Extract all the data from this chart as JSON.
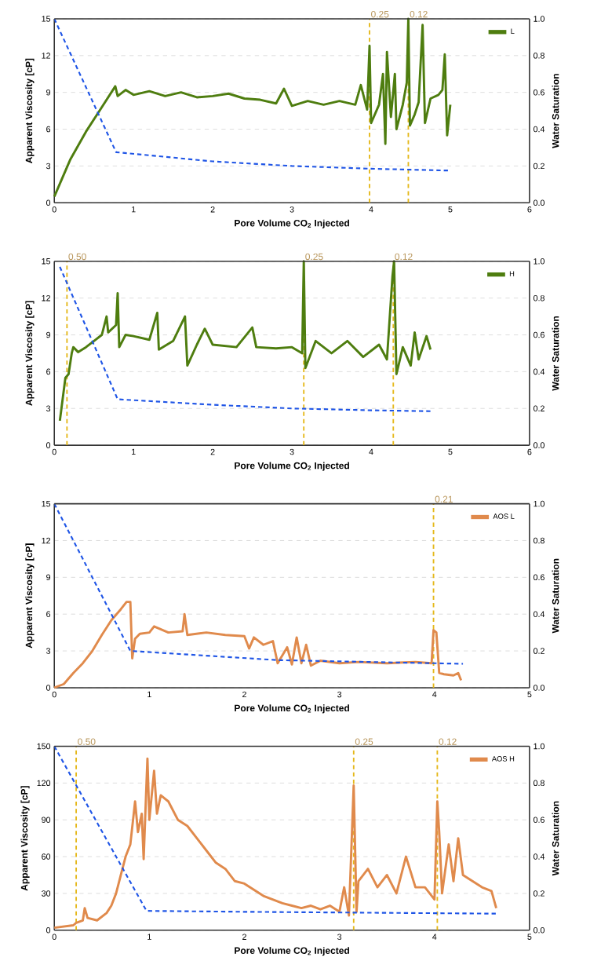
{
  "chart_data": [
    {
      "type": "line",
      "xlabel": "Pore Volume CO$_{2}$ Injected",
      "ylabel": "Apparent Viscosity [cP]",
      "y2label": "Water Saturation",
      "xlim": [
        0,
        6
      ],
      "xticks": [
        0,
        1,
        2,
        3,
        4,
        5,
        6
      ],
      "ylim": [
        0,
        15
      ],
      "yticks": [
        0,
        3,
        6,
        9,
        12,
        15
      ],
      "y2lim": [
        0,
        1
      ],
      "y2ticks": [
        {
          "value": 0,
          "label": "0.0"
        },
        {
          "value": 0.2,
          "label": "0.2"
        },
        {
          "value": 0.4,
          "label": "0.4"
        },
        {
          "value": 0.6,
          "label": "0.6"
        },
        {
          "value": 0.8,
          "label": "0.8"
        },
        {
          "value": 1,
          "label": "1.0"
        }
      ],
      "grid": "y",
      "legend": "top right",
      "marker": "none",
      "series": [
        {
          "name": "L",
          "color": "#4e7d0f",
          "x": [
            0,
            0.2,
            0.4,
            0.6,
            0.77,
            0.8,
            0.9,
            1.0,
            1.2,
            1.4,
            1.6,
            1.8,
            2.0,
            2.2,
            2.4,
            2.6,
            2.8,
            2.9,
            3.0,
            3.2,
            3.4,
            3.6,
            3.8,
            3.87,
            3.95,
            3.98,
            4.0,
            4.1,
            4.15,
            4.18,
            4.2,
            4.25,
            4.3,
            4.32,
            4.4,
            4.45,
            4.47,
            4.49,
            4.55,
            4.6,
            4.65,
            4.68,
            4.75,
            4.85,
            4.9,
            4.93,
            4.96,
            5.0
          ],
          "values": [
            0.5,
            3.5,
            5.8,
            7.8,
            9.5,
            8.7,
            9.2,
            8.8,
            9.1,
            8.7,
            9.0,
            8.6,
            8.7,
            8.9,
            8.5,
            8.4,
            8.1,
            9.3,
            7.9,
            8.3,
            8.0,
            8.3,
            8.0,
            9.6,
            7.6,
            12.8,
            6.5,
            8.0,
            10.5,
            4.8,
            12.3,
            7.0,
            10.5,
            6.0,
            8.0,
            9.8,
            15,
            6.3,
            7.2,
            8.2,
            14.5,
            6.5,
            8.5,
            8.8,
            9.2,
            12.1,
            5.5,
            8.0
          ]
        },
        {
          "color": "#1f55e6",
          "axis": "y2",
          "line_style": "dashed",
          "x": [
            0,
            0.78,
            2,
            3,
            4,
            5
          ],
          "values": [
            1.0,
            0.275,
            0.225,
            0.2,
            0.185,
            0.175
          ]
        }
      ],
      "ref_lines": [
        {
          "axis": "x",
          "value": 3.98,
          "color": "#e5b81a",
          "line_style": "dashed"
        },
        {
          "axis": "x",
          "value": 4.47,
          "color": "#e5b81a",
          "line_style": "dashed"
        }
      ],
      "annotations": [
        {
          "text": "0.25",
          "x": 3.98,
          "y": 15
        },
        {
          "text": "0.12",
          "x": 4.47,
          "y": 15
        }
      ]
    },
    {
      "type": "line",
      "xlabel": "Pore Volume CO$_{2}$ Injected",
      "ylabel": "Apparent Viscosity [cP]",
      "y2label": "Water Saturation",
      "xlim": [
        0,
        6
      ],
      "xticks": [
        0,
        1,
        2,
        3,
        4,
        5,
        6
      ],
      "ylim": [
        0,
        15
      ],
      "yticks": [
        0,
        3,
        6,
        9,
        12,
        15
      ],
      "y2lim": [
        0,
        1
      ],
      "y2ticks": [
        {
          "value": 0,
          "label": "0.0"
        },
        {
          "value": 0.2,
          "label": "0.2"
        },
        {
          "value": 0.4,
          "label": "0.4"
        },
        {
          "value": 0.6,
          "label": "0.6"
        },
        {
          "value": 0.8,
          "label": "0.8"
        },
        {
          "value": 1,
          "label": "1.0"
        }
      ],
      "grid": "y",
      "legend": "top right",
      "marker": "none",
      "series": [
        {
          "name": "H",
          "color": "#4e7d0f",
          "x": [
            0.07,
            0.14,
            0.18,
            0.22,
            0.24,
            0.3,
            0.4,
            0.5,
            0.6,
            0.66,
            0.68,
            0.78,
            0.8,
            0.82,
            0.9,
            1.0,
            1.2,
            1.3,
            1.32,
            1.5,
            1.65,
            1.68,
            1.8,
            1.9,
            2.0,
            2.3,
            2.5,
            2.55,
            2.8,
            3.0,
            3.13,
            3.15,
            3.17,
            3.3,
            3.5,
            3.7,
            3.9,
            4.1,
            4.2,
            4.27,
            4.29,
            4.32,
            4.4,
            4.5,
            4.55,
            4.6,
            4.7,
            4.75
          ],
          "values": [
            2.0,
            5.5,
            5.8,
            7.5,
            8.0,
            7.6,
            8.0,
            8.5,
            9.0,
            10.5,
            9.2,
            9.8,
            12.4,
            8.0,
            9.0,
            8.9,
            8.6,
            10.8,
            7.8,
            8.5,
            10.5,
            6.5,
            8.2,
            9.5,
            8.2,
            8.0,
            9.6,
            8.0,
            7.9,
            8.0,
            7.5,
            15,
            6.3,
            8.5,
            7.5,
            8.5,
            7.2,
            8.2,
            7.0,
            13.8,
            15,
            5.8,
            8.0,
            6.5,
            9.2,
            7.0,
            8.9,
            7.8
          ]
        },
        {
          "color": "#1f55e6",
          "axis": "y2",
          "line_style": "dashed",
          "x": [
            0.07,
            0.8,
            2,
            3,
            4,
            4.75
          ],
          "values": [
            0.97,
            0.25,
            0.22,
            0.2,
            0.19,
            0.185
          ]
        }
      ],
      "ref_lines": [
        {
          "axis": "x",
          "value": 0.16,
          "color": "#e5b81a",
          "line_style": "dashed"
        },
        {
          "axis": "x",
          "value": 3.15,
          "color": "#e5b81a",
          "line_style": "dashed"
        },
        {
          "axis": "x",
          "value": 4.28,
          "color": "#e5b81a",
          "line_style": "dashed"
        }
      ],
      "annotations": [
        {
          "text": "0.50",
          "x": 0.16,
          "y": 15
        },
        {
          "text": "0.25",
          "x": 3.15,
          "y": 15
        },
        {
          "text": "0.12",
          "x": 4.28,
          "y": 15
        }
      ]
    },
    {
      "type": "line",
      "xlabel": "Pore Volume CO$_{2}$ Injected",
      "ylabel": "Apparent Viscosity [cP]",
      "y2label": "Water Saturation",
      "xlim": [
        0,
        5
      ],
      "xticks": [
        0,
        1,
        2,
        3,
        4,
        5
      ],
      "ylim": [
        0,
        15
      ],
      "yticks": [
        0,
        3,
        6,
        9,
        12,
        15
      ],
      "y2lim": [
        0,
        1
      ],
      "y2ticks": [
        {
          "value": 0,
          "label": "0.0"
        },
        {
          "value": 0.2,
          "label": "0.2"
        },
        {
          "value": 0.4,
          "label": "0.4"
        },
        {
          "value": 0.6,
          "label": "0.6"
        },
        {
          "value": 0.8,
          "label": "0.8"
        },
        {
          "value": 1,
          "label": "1.0"
        }
      ],
      "grid": "y",
      "legend": "top right",
      "marker": "none",
      "series": [
        {
          "name": "AOS L",
          "color": "#e08a4c",
          "x": [
            0,
            0.1,
            0.2,
            0.3,
            0.4,
            0.5,
            0.6,
            0.7,
            0.76,
            0.8,
            0.82,
            0.85,
            0.9,
            1.0,
            1.05,
            1.2,
            1.35,
            1.37,
            1.4,
            1.6,
            1.8,
            2.0,
            2.05,
            2.1,
            2.2,
            2.3,
            2.35,
            2.45,
            2.5,
            2.55,
            2.6,
            2.65,
            2.7,
            2.8,
            3.0,
            3.2,
            3.5,
            3.8,
            3.97,
            3.99,
            4.02,
            4.05,
            4.1,
            4.2,
            4.25,
            4.28
          ],
          "values": [
            0,
            0.3,
            1.2,
            2.0,
            3.0,
            4.3,
            5.5,
            6.4,
            7.0,
            7.0,
            2.4,
            4.0,
            4.4,
            4.5,
            5.0,
            4.5,
            4.6,
            6.0,
            4.3,
            4.5,
            4.3,
            4.2,
            3.2,
            4.1,
            3.5,
            3.8,
            2.0,
            3.3,
            1.9,
            4.1,
            2.0,
            3.5,
            1.8,
            2.2,
            2.0,
            2.1,
            2.0,
            2.1,
            2.0,
            4.7,
            4.5,
            1.2,
            1.1,
            1.0,
            1.2,
            0.6
          ]
        },
        {
          "color": "#1f55e6",
          "axis": "y2",
          "line_style": "dashed",
          "x": [
            0,
            0.8,
            2.35,
            4.3
          ],
          "values": [
            1.0,
            0.2,
            0.15,
            0.13
          ]
        }
      ],
      "ref_lines": [
        {
          "axis": "x",
          "value": 3.99,
          "color": "#e5b81a",
          "line_style": "dashed"
        }
      ],
      "annotations": [
        {
          "text": "0.21",
          "x": 3.99,
          "y": 15
        }
      ]
    },
    {
      "type": "line",
      "xlabel": "Pore Volume CO$_{2}$ Injected",
      "ylabel": "Apparent Viscosity [cP]",
      "y2label": "Water Saturation",
      "xlim": [
        0,
        5
      ],
      "xticks": [
        0,
        1,
        2,
        3,
        4,
        5
      ],
      "ylim": [
        0,
        150
      ],
      "yticks": [
        0,
        30,
        60,
        90,
        120,
        150
      ],
      "y2lim": [
        0,
        1
      ],
      "y2ticks": [
        {
          "value": 0,
          "label": "0.0"
        },
        {
          "value": 0.2,
          "label": "0.2"
        },
        {
          "value": 0.4,
          "label": "0.4"
        },
        {
          "value": 0.6,
          "label": "0.6"
        },
        {
          "value": 0.8,
          "label": "0.8"
        },
        {
          "value": 1,
          "label": "1.0"
        }
      ],
      "grid": "y",
      "legend": "top right",
      "marker": "none",
      "series": [
        {
          "name": "AOS H",
          "color": "#e08a4c",
          "x": [
            0,
            0.2,
            0.23,
            0.3,
            0.32,
            0.35,
            0.45,
            0.55,
            0.6,
            0.65,
            0.7,
            0.75,
            0.8,
            0.85,
            0.88,
            0.92,
            0.94,
            0.97,
            0.98,
            1.0,
            1.05,
            1.08,
            1.12,
            1.2,
            1.3,
            1.4,
            1.5,
            1.6,
            1.7,
            1.8,
            1.9,
            2.0,
            2.1,
            2.2,
            2.3,
            2.4,
            2.5,
            2.6,
            2.7,
            2.8,
            2.9,
            3.0,
            3.05,
            3.1,
            3.15,
            3.18,
            3.2,
            3.3,
            3.4,
            3.5,
            3.6,
            3.7,
            3.8,
            3.9,
            4.0,
            4.03,
            4.05,
            4.08,
            4.15,
            4.2,
            4.25,
            4.3,
            4.4,
            4.5,
            4.6,
            4.65
          ],
          "values": [
            2,
            4,
            6,
            8,
            18,
            10,
            8,
            14,
            20,
            30,
            45,
            60,
            70,
            105,
            80,
            95,
            58,
            120,
            140,
            90,
            130,
            95,
            110,
            105,
            90,
            85,
            75,
            65,
            55,
            50,
            40,
            38,
            33,
            28,
            25,
            22,
            20,
            18,
            20,
            17,
            20,
            15,
            35,
            12,
            118,
            15,
            40,
            50,
            35,
            45,
            30,
            60,
            35,
            35,
            25,
            105,
            80,
            30,
            70,
            40,
            75,
            45,
            40,
            35,
            32,
            18
          ]
        },
        {
          "color": "#1f55e6",
          "axis": "y2",
          "line_style": "dashed",
          "x": [
            0,
            0.97,
            2,
            4.65
          ],
          "values": [
            1.0,
            0.105,
            0.1,
            0.09
          ]
        }
      ],
      "ref_lines": [
        {
          "axis": "x",
          "value": 0.23,
          "color": "#e5b81a",
          "line_style": "dashed"
        },
        {
          "axis": "x",
          "value": 3.15,
          "color": "#e5b81a",
          "line_style": "dashed"
        },
        {
          "axis": "x",
          "value": 4.03,
          "color": "#e5b81a",
          "line_style": "dashed"
        }
      ],
      "annotations": [
        {
          "text": "0.50",
          "x": 0.23,
          "y": 150
        },
        {
          "text": "0.25",
          "x": 3.15,
          "y": 150
        },
        {
          "text": "0.12",
          "x": 4.03,
          "y": 150
        }
      ]
    }
  ]
}
